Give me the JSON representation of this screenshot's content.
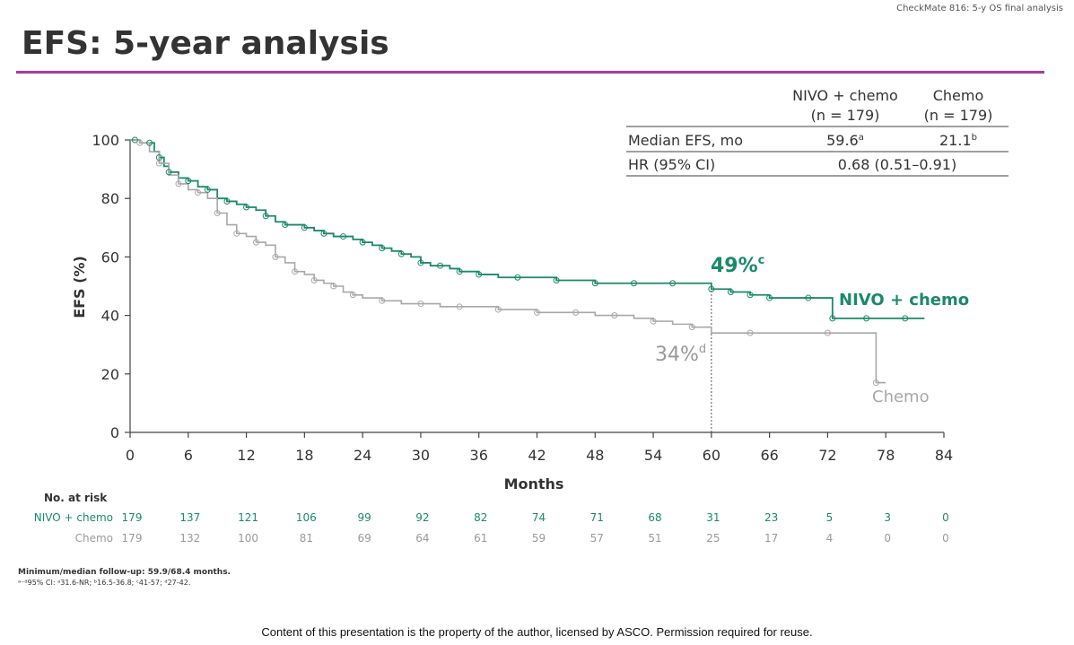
{
  "header": {
    "tag": "CheckMate 816: 5-y OS final analysis",
    "title": "EFS: 5-year analysis",
    "accent_color": "#a63d9f"
  },
  "summary_table": {
    "arm1_header_line1": "NIVO + chemo",
    "arm1_header_line2": "(n = 179)",
    "arm2_header_line1": "Chemo",
    "arm2_header_line2": "(n = 179)",
    "row1_label": "Median EFS, mo",
    "row1_arm1_value": "59.6",
    "row1_arm1_sup": "a",
    "row1_arm2_value": "21.1",
    "row1_arm2_sup": "b",
    "row2_label": "HR (95% CI)",
    "row2_value": "0.68 (0.51–0.91)"
  },
  "chart_data": {
    "type": "line",
    "subtype": "kaplan-meier",
    "xlabel": "Months",
    "ylabel": "EFS (%)",
    "xlim": [
      0,
      84
    ],
    "ylim": [
      0,
      100
    ],
    "xticks": [
      0,
      6,
      12,
      18,
      24,
      30,
      36,
      42,
      48,
      54,
      60,
      66,
      72,
      78,
      84
    ],
    "yticks": [
      0,
      20,
      40,
      60,
      80,
      100
    ],
    "reference_line_x": 60,
    "series": [
      {
        "name": "NIVO + chemo",
        "color": "#1a8a6a",
        "x": [
          0,
          0.5,
          1,
          2,
          2.5,
          3,
          3.5,
          4,
          5,
          6,
          7,
          8,
          9,
          10,
          11,
          12,
          13,
          14,
          15,
          16,
          17,
          18,
          19,
          20,
          21,
          22,
          23,
          24,
          25,
          26,
          27,
          28,
          29,
          30,
          31,
          32,
          33,
          34,
          35,
          36,
          38,
          40,
          42,
          44,
          46,
          48,
          50,
          52,
          54,
          56,
          58,
          60,
          61,
          62,
          63,
          64,
          65,
          66,
          68,
          70,
          72,
          72.5,
          74,
          76,
          78,
          80,
          82
        ],
        "y": [
          100,
          100,
          99,
          99,
          96,
          94,
          91,
          89,
          87,
          86,
          84,
          83,
          80,
          79,
          78,
          77,
          76,
          74,
          72,
          71,
          71,
          70,
          69,
          68,
          67,
          67,
          66,
          65,
          64,
          63,
          62,
          61,
          60,
          58,
          57,
          57,
          56,
          55,
          55,
          54,
          53,
          53,
          53,
          52,
          52,
          51,
          51,
          51,
          51,
          51,
          51,
          49,
          49,
          48,
          48,
          47,
          47,
          46,
          46,
          46,
          46,
          39,
          39,
          39,
          39,
          39,
          39
        ],
        "endpoint_label": "NIVO + chemo",
        "annotation_value": "49%",
        "annotation_sup": "c"
      },
      {
        "name": "Chemo",
        "color": "#a8a8a8",
        "x": [
          0,
          1,
          2,
          3,
          4,
          5,
          6,
          7,
          8,
          9,
          10,
          11,
          12,
          13,
          14,
          15,
          16,
          17,
          18,
          19,
          20,
          21,
          22,
          23,
          24,
          26,
          28,
          30,
          32,
          34,
          36,
          38,
          40,
          42,
          44,
          46,
          48,
          50,
          52,
          54,
          56,
          58,
          60,
          64,
          68,
          72,
          76,
          77,
          78
        ],
        "y": [
          100,
          99,
          96,
          92,
          88,
          85,
          83,
          82,
          80,
          75,
          71,
          68,
          67,
          65,
          64,
          60,
          58,
          55,
          54,
          52,
          51,
          50,
          48,
          47,
          46,
          45,
          44,
          44,
          43,
          43,
          43,
          42,
          42,
          41,
          41,
          41,
          40,
          40,
          39,
          38,
          37,
          36,
          34,
          34,
          34,
          34,
          34,
          17,
          17
        ],
        "endpoint_label": "Chemo",
        "annotation_value": "34%",
        "annotation_sup": "d"
      }
    ]
  },
  "risk_table": {
    "heading": "No. at risk",
    "rows": [
      {
        "label": "NIVO + chemo",
        "color": "#1a8a6a",
        "values": [
          "179",
          "137",
          "121",
          "106",
          "99",
          "92",
          "82",
          "74",
          "71",
          "68",
          "31",
          "23",
          "5",
          "3",
          "0"
        ]
      },
      {
        "label": "Chemo",
        "color": "#999999",
        "values": [
          "179",
          "132",
          "100",
          "81",
          "69",
          "64",
          "61",
          "59",
          "57",
          "51",
          "25",
          "17",
          "4",
          "0",
          "0"
        ]
      }
    ]
  },
  "footnotes": {
    "line1": "Minimum/median follow-up: 59.9/68.4 months.",
    "line2": "ᵃ⁻ᵈ95% CI: ᵃ31.6-NR; ᵇ16.5-36.8; ᶜ41-57; ᵈ27-42."
  },
  "copyright": "Content of this presentation is the property of the author, licensed by ASCO. Permission required for reuse."
}
